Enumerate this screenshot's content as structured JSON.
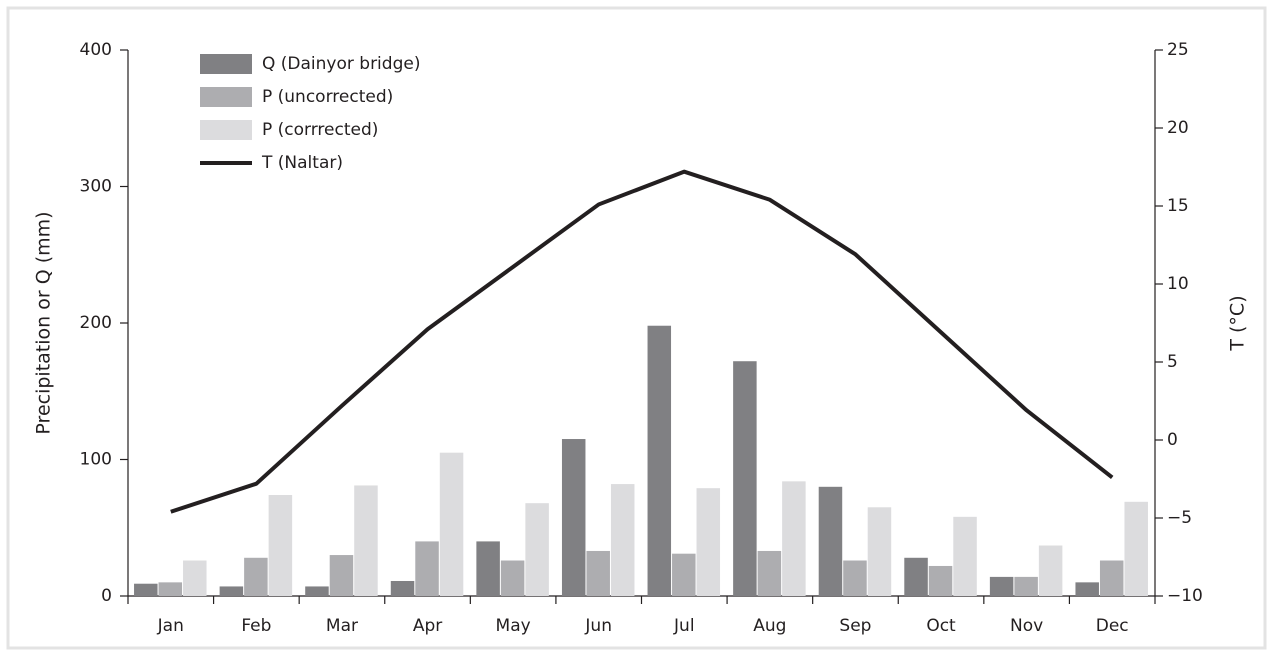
{
  "chart_data": {
    "type": "bar_line",
    "categories": [
      "Jan",
      "Feb",
      "Mar",
      "Apr",
      "May",
      "Jun",
      "Jul",
      "Aug",
      "Sep",
      "Oct",
      "Nov",
      "Dec"
    ],
    "ylabel": "Precipitation or Q (mm)",
    "y2label": "T (°C)",
    "ylim": [
      0,
      400
    ],
    "yticks": [
      0,
      100,
      200,
      300,
      400
    ],
    "y2lim": [
      -10,
      25
    ],
    "y2ticks": [
      {
        "value": -10,
        "label": "−10"
      },
      {
        "value": -5,
        "label": "−5"
      },
      0,
      5,
      10,
      15,
      20,
      25
    ],
    "series": [
      {
        "name": "Q (Dainyor bridge)",
        "type": "bar",
        "color": "#808083",
        "values": [
          9,
          7,
          7,
          11,
          40,
          115,
          198,
          172,
          80,
          28,
          14,
          10
        ]
      },
      {
        "name": "P (uncorrected)",
        "type": "bar",
        "color": "#adadb0",
        "values": [
          10,
          28,
          30,
          40,
          26,
          33,
          31,
          33,
          26,
          22,
          14,
          26
        ]
      },
      {
        "name": "P (corrrected)",
        "type": "bar",
        "color": "#dcdcde",
        "values": [
          26,
          74,
          81,
          105,
          68,
          82,
          79,
          84,
          65,
          58,
          37,
          69
        ]
      },
      {
        "name": "T (Naltar)",
        "type": "line",
        "axis": "y2",
        "color": "#231f20",
        "values": [
          -4.6,
          -2.8,
          2.2,
          7.1,
          11.1,
          15.1,
          17.2,
          15.4,
          11.9,
          6.9,
          1.9,
          -2.4
        ]
      }
    ]
  }
}
